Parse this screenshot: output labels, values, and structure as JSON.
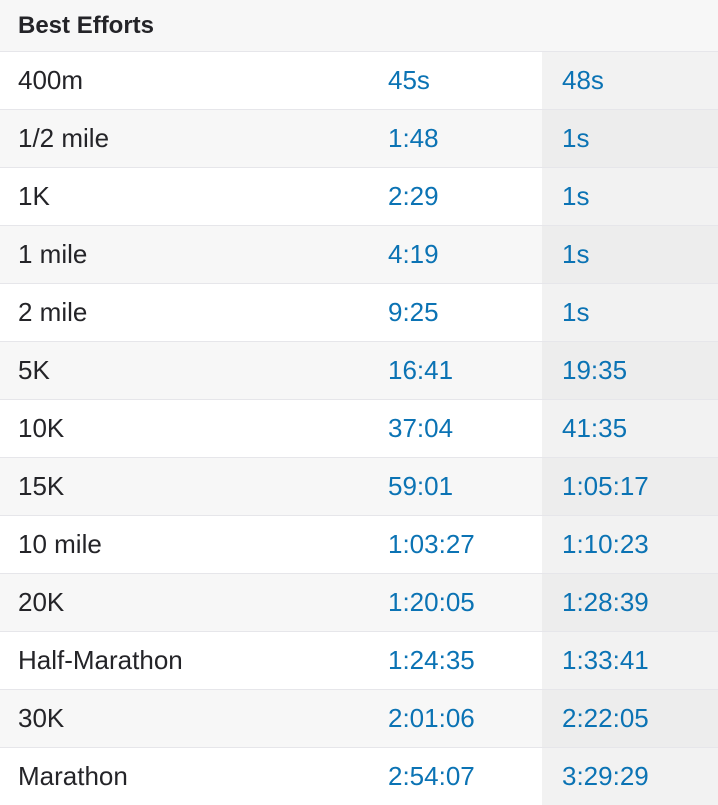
{
  "header": {
    "title": "Best Efforts"
  },
  "efforts": [
    {
      "name": "400m",
      "best": "45s",
      "other": "48s"
    },
    {
      "name": "1/2 mile",
      "best": "1:48",
      "other": "1s"
    },
    {
      "name": "1K",
      "best": "2:29",
      "other": "1s"
    },
    {
      "name": "1 mile",
      "best": "4:19",
      "other": "1s"
    },
    {
      "name": "2 mile",
      "best": "9:25",
      "other": "1s"
    },
    {
      "name": "5K",
      "best": "16:41",
      "other": "19:35"
    },
    {
      "name": "10K",
      "best": "37:04",
      "other": "41:35"
    },
    {
      "name": "15K",
      "best": "59:01",
      "other": "1:05:17"
    },
    {
      "name": "10 mile",
      "best": "1:03:27",
      "other": "1:10:23"
    },
    {
      "name": "20K",
      "best": "1:20:05",
      "other": "1:28:39"
    },
    {
      "name": "Half-Marathon",
      "best": "1:24:35",
      "other": "1:33:41"
    },
    {
      "name": "30K",
      "best": "2:01:06",
      "other": "2:22:05"
    },
    {
      "name": "Marathon",
      "best": "2:54:07",
      "other": "3:29:29"
    }
  ],
  "colors": {
    "link": "#0b73b4",
    "text": "#242428",
    "header_bg": "#f7f7f7",
    "alt_row_bg": "#f7f7f7",
    "compare_col_bg": "#f2f2f2",
    "border": "#e6e6ea"
  }
}
